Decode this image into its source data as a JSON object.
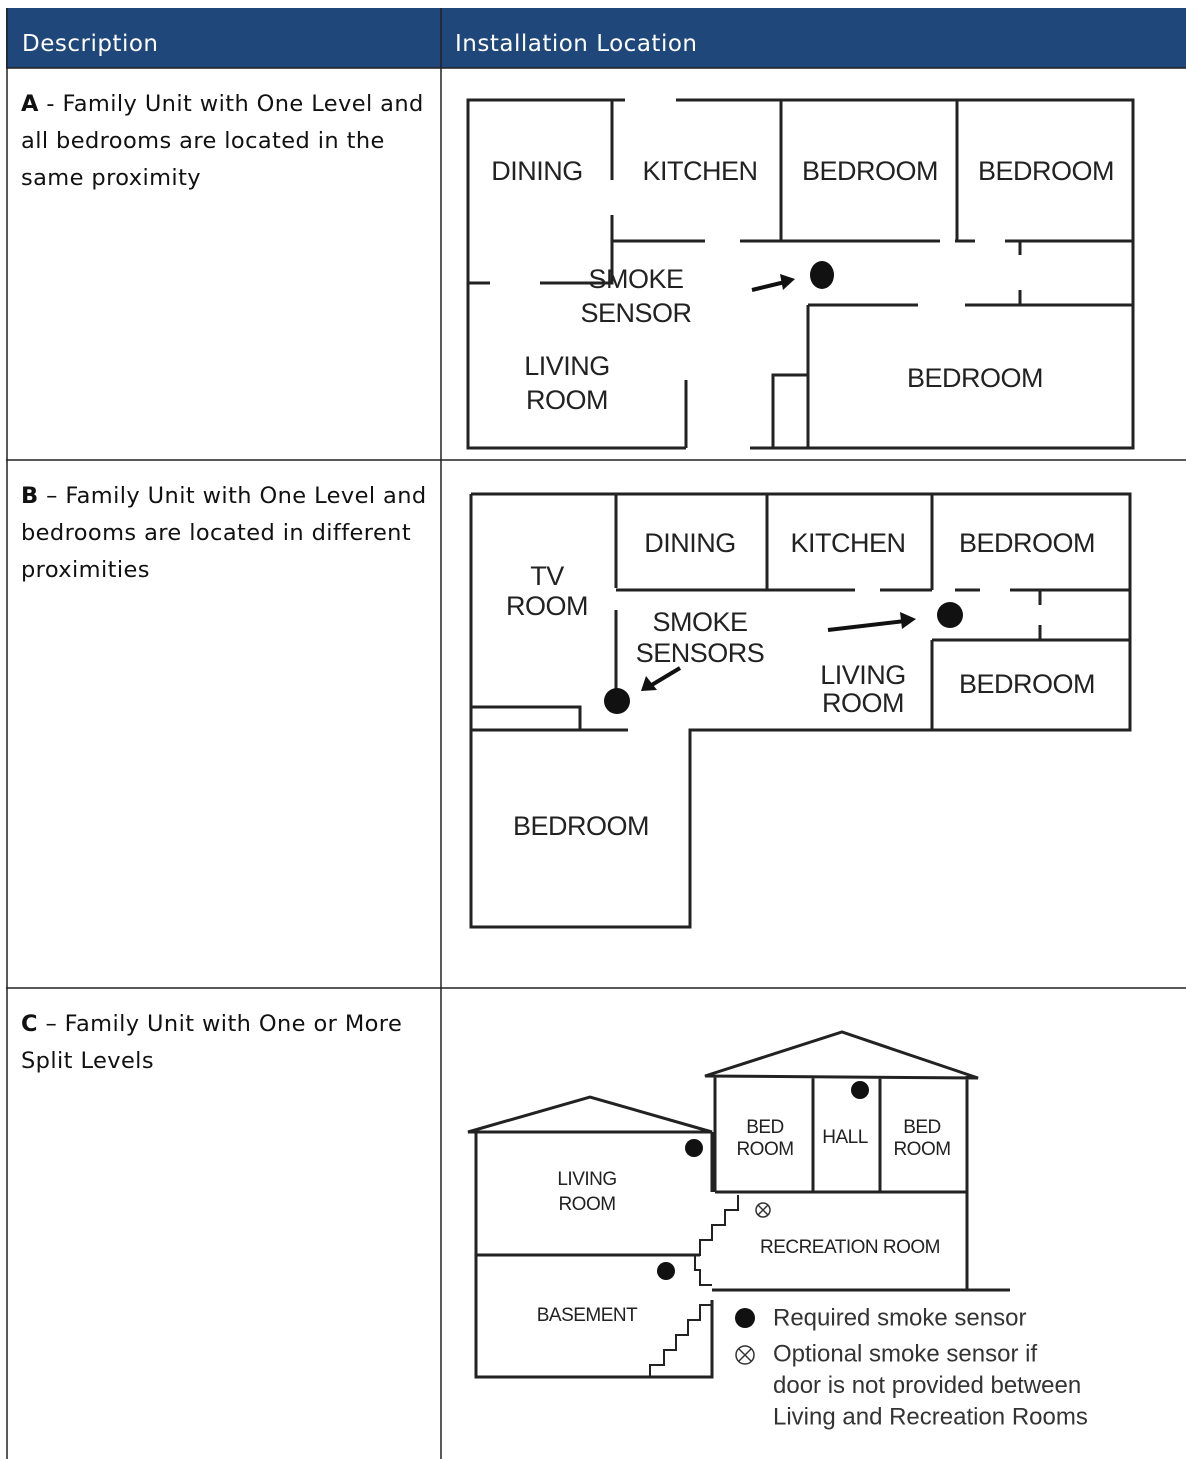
{
  "table": {
    "headers": [
      "Description",
      "Installation Location"
    ],
    "rows": [
      {
        "label": "A",
        "description": "- Family Unit with One Level and all bedrooms are located in the same proximity",
        "diagram": {
          "labels": [
            [
              "DINING"
            ],
            [
              "KITCHEN"
            ],
            [
              "BEDROOM"
            ],
            [
              "BEDROOM"
            ],
            [
              "SMOKE",
              "SENSOR"
            ],
            [
              "LIVING",
              "ROOM"
            ],
            [
              "BEDROOM"
            ]
          ]
        }
      },
      {
        "label": "B",
        "description": "– Family Unit with One Level and bedrooms are located in different proximities",
        "diagram": {
          "labels": [
            [
              "TV",
              "ROOM"
            ],
            [
              "DINING"
            ],
            [
              "KITCHEN"
            ],
            [
              "BEDROOM"
            ],
            [
              "SMOKE",
              "SENSORS"
            ],
            [
              "LIVING",
              "ROOM"
            ],
            [
              "BEDROOM"
            ],
            [
              "BEDROOM"
            ]
          ]
        }
      },
      {
        "label": "C",
        "description": "– Family Unit with One or More Split Levels",
        "diagram": {
          "labels": [
            [
              "LIVING",
              "ROOM"
            ],
            [
              "BED",
              "ROOM"
            ],
            [
              "HALL"
            ],
            [
              "BED",
              "ROOM"
            ],
            [
              "RECREATION ROOM"
            ],
            [
              "BASEMENT"
            ]
          ],
          "legend": {
            "required": [
              "Required smoke sensor"
            ],
            "optional": [
              "Optional smoke sensor if",
              "door is not provided between",
              "Living and Recreation Rooms"
            ]
          }
        }
      }
    ]
  }
}
